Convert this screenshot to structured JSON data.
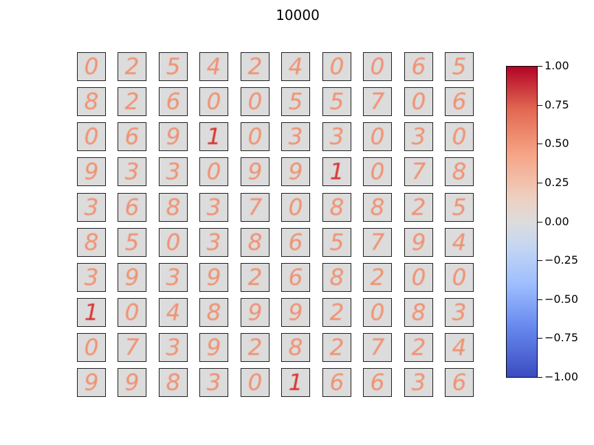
{
  "title": "10000",
  "colors": {
    "tile_background": "#dcdcdc",
    "digit_light": "#f09070",
    "digit_strong": "#d8332f",
    "colormap": "coolwarm"
  },
  "colorbar": {
    "ticks": [
      "1.00",
      "0.75",
      "0.50",
      "0.25",
      "0.00",
      "−0.25",
      "−0.50",
      "−0.75",
      "−1.00"
    ],
    "range": [
      -1,
      1
    ]
  },
  "grid": {
    "rows": [
      [
        "0",
        "2",
        "5",
        "4",
        "2",
        "4",
        "0",
        "0",
        "6",
        "5"
      ],
      [
        "8",
        "2",
        "6",
        "0",
        "0",
        "5",
        "5",
        "7",
        "0",
        "6"
      ],
      [
        "0",
        "6",
        "9",
        "1",
        "0",
        "3",
        "3",
        "0",
        "3",
        "0"
      ],
      [
        "9",
        "3",
        "3",
        "0",
        "9",
        "9",
        "1",
        "0",
        "7",
        "8"
      ],
      [
        "3",
        "6",
        "8",
        "3",
        "7",
        "0",
        "8",
        "8",
        "2",
        "5"
      ],
      [
        "8",
        "5",
        "0",
        "3",
        "8",
        "6",
        "5",
        "7",
        "9",
        "4"
      ],
      [
        "3",
        "9",
        "3",
        "9",
        "2",
        "6",
        "8",
        "2",
        "0",
        "0"
      ],
      [
        "1",
        "0",
        "4",
        "8",
        "9",
        "9",
        "2",
        "0",
        "8",
        "3"
      ],
      [
        "0",
        "7",
        "3",
        "9",
        "2",
        "8",
        "2",
        "7",
        "2",
        "4"
      ],
      [
        "9",
        "9",
        "8",
        "3",
        "0",
        "1",
        "6",
        "6",
        "3",
        "6"
      ]
    ]
  }
}
